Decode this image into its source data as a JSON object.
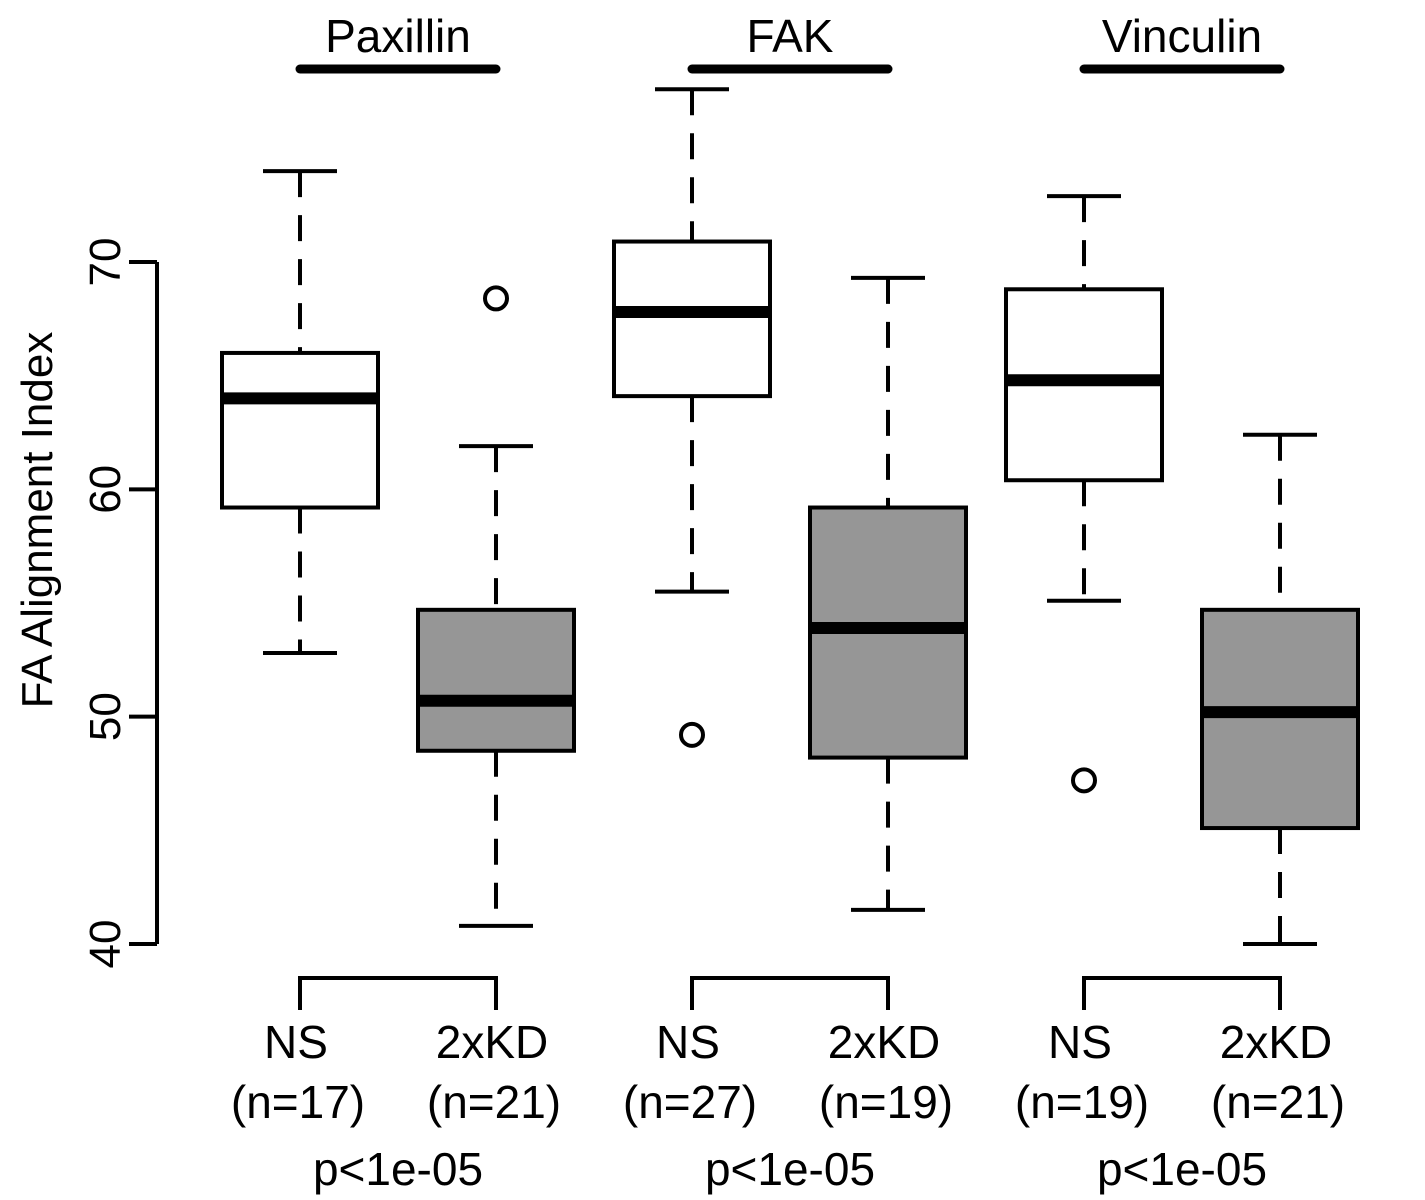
{
  "chart_data": {
    "type": "boxplot",
    "title": "",
    "xlabel": "",
    "ylabel": "FA Alignment Index",
    "ylim": [
      40,
      78
    ],
    "yticks": [
      "40",
      "50",
      "60",
      "70"
    ],
    "grid": false,
    "colors": {
      "NS": "#ffffff",
      "2xKD": "#969696"
    },
    "groups": [
      {
        "name": "Paxillin",
        "pvalue": "p<1e-05",
        "boxes": [
          {
            "label": "NS",
            "n_label": "(n=17)",
            "min": 52.8,
            "q1": 59.2,
            "median": 64.0,
            "q3": 66.0,
            "max": 74.0,
            "outliers": []
          },
          {
            "label": "2xKD",
            "n_label": "(n=21)",
            "min": 40.8,
            "q1": 48.5,
            "median": 50.7,
            "q3": 54.7,
            "max": 61.9,
            "outliers": [
              68.4
            ]
          }
        ]
      },
      {
        "name": "FAK",
        "pvalue": "p<1e-05",
        "boxes": [
          {
            "label": "NS",
            "n_label": "(n=27)",
            "min": 55.5,
            "q1": 64.1,
            "median": 67.8,
            "q3": 70.9,
            "max": 77.6,
            "outliers": [
              49.2
            ]
          },
          {
            "label": "2xKD",
            "n_label": "(n=19)",
            "min": 41.5,
            "q1": 48.2,
            "median": 53.9,
            "q3": 59.2,
            "max": 69.3,
            "outliers": []
          }
        ]
      },
      {
        "name": "Vinculin",
        "pvalue": "p<1e-05",
        "boxes": [
          {
            "label": "NS",
            "n_label": "(n=19)",
            "min": 55.1,
            "q1": 60.4,
            "median": 64.8,
            "q3": 68.8,
            "max": 72.9,
            "outliers": [
              47.2
            ]
          },
          {
            "label": "2xKD",
            "n_label": "(n=21)",
            "min": 40.0,
            "q1": 45.1,
            "median": 50.2,
            "q3": 54.7,
            "max": 62.4,
            "outliers": []
          }
        ]
      }
    ]
  }
}
